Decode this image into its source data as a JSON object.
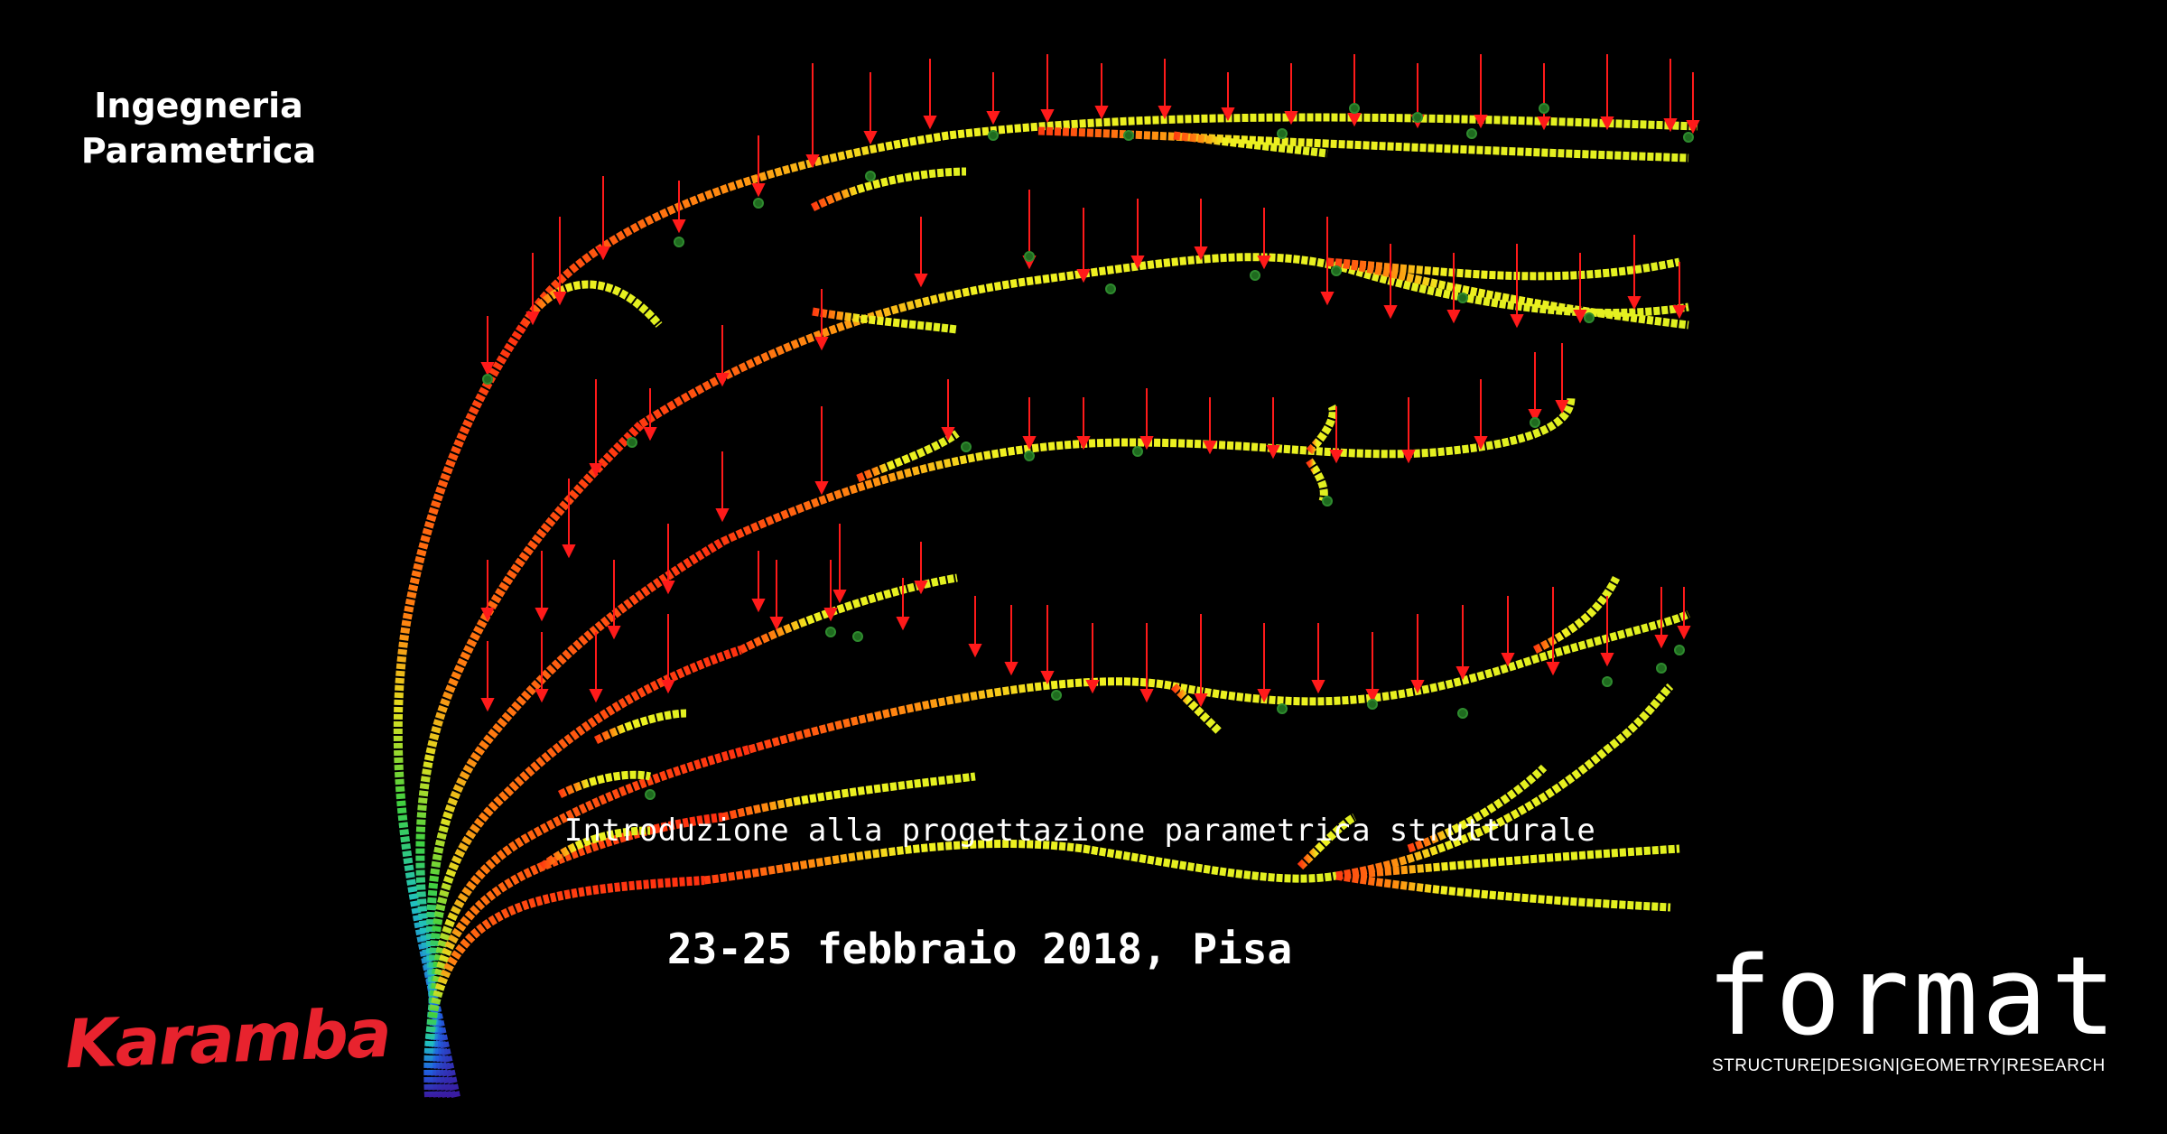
{
  "heading": {
    "line1": "Ingegneria",
    "line2": "Parametrica"
  },
  "subtitle": "Introduzione alla progettazione parametrica strutturale",
  "date": "23-25 febbraio 2018, Pisa",
  "logos": {
    "karamba": "Karamba",
    "brand": "format",
    "brand_tagline": "STRUCTURE|DESIGN|GEOMETRY|RESEARCH"
  },
  "colors": {
    "background": "#000000",
    "text": "#ffffff",
    "karamba_red": "#e8232e",
    "load_arrow": "#ff1a1a",
    "support_node": "#2e8b2e",
    "stress_low": "#f0f020",
    "stress_high": "#ff3010",
    "base_gradient": [
      "#2020c0",
      "#20a0e0",
      "#20d060",
      "#c0f020"
    ]
  },
  "icons": {
    "load": "red-downward-arrow",
    "support": "green-circle-node"
  }
}
